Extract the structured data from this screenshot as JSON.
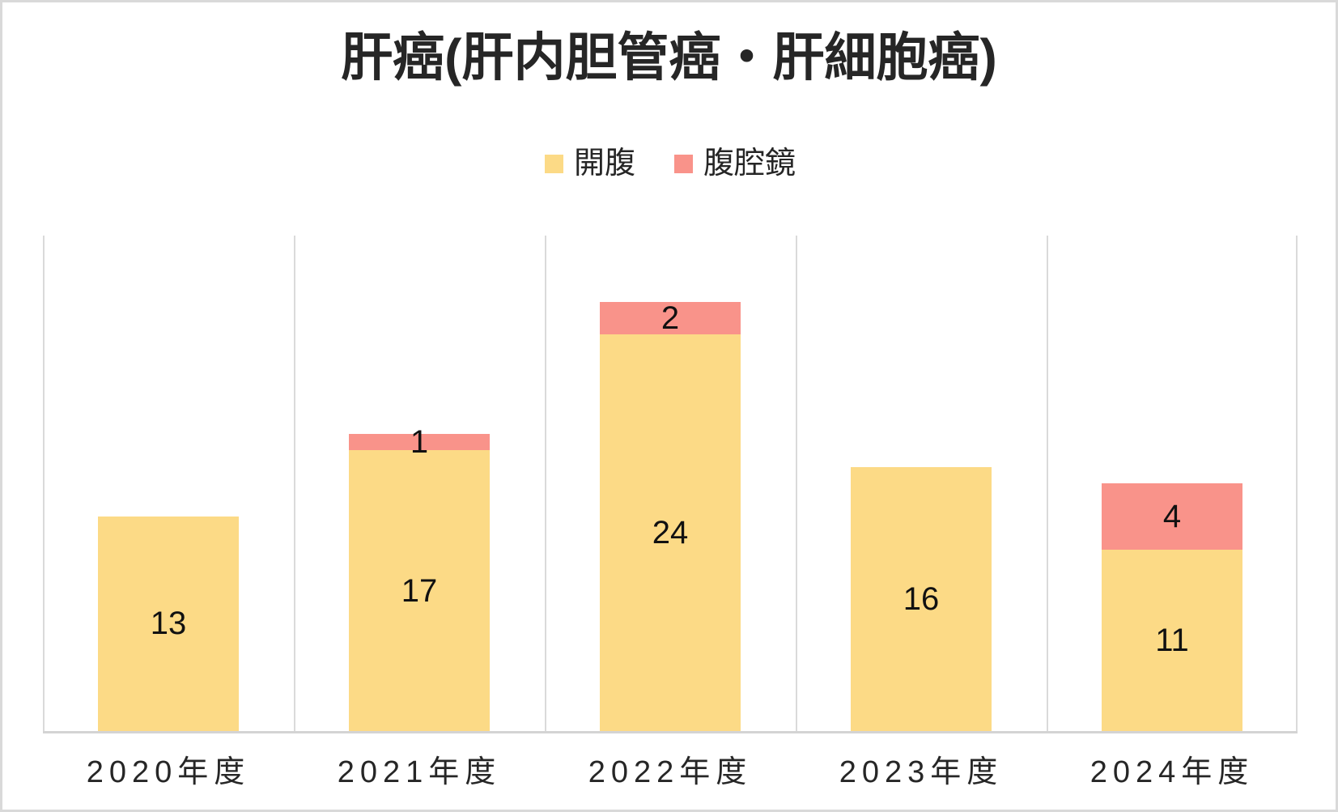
{
  "chart_data": {
    "type": "bar",
    "stacked": true,
    "title": "肝癌(肝内胆管癌・肝細胞癌)",
    "categories": [
      "2020年度",
      "2021年度",
      "2022年度",
      "2023年度",
      "2024年度"
    ],
    "series": [
      {
        "name": "開腹",
        "color": "#FCDA86",
        "values": [
          13,
          17,
          24,
          16,
          11
        ]
      },
      {
        "name": "腹腔鏡",
        "color": "#F9938A",
        "values": [
          0,
          1,
          2,
          0,
          4
        ]
      }
    ],
    "totals": [
      13,
      18,
      26,
      16,
      15
    ],
    "ylim": [
      0,
      30
    ],
    "y_axis_labels_visible": false,
    "data_labels_visible": true,
    "data_labels_position": "center-of-segment",
    "grid": "vertical-category-boundaries-only",
    "gridline_color": "#DADADA",
    "axis_line_color": "#D4D4D4",
    "data_label_color": "#111111",
    "text_color": "#262626",
    "legend_position": "top-center",
    "bar_width_fraction": 0.56
  }
}
